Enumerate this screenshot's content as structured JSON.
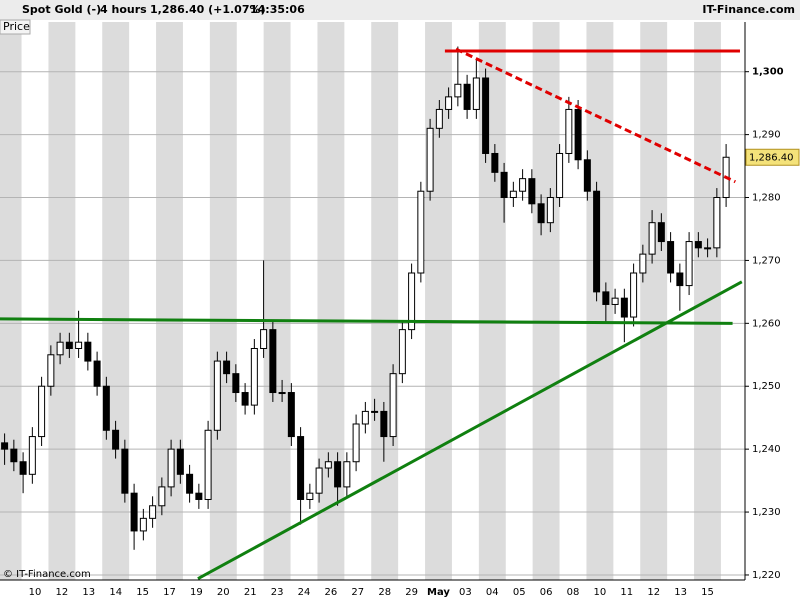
{
  "header": {
    "instrument": "Spot Gold (-)",
    "interval": "4 hours",
    "quote": "1,286.40 (+1.07%)",
    "time": "14:35:06",
    "site": "IT-Finance.com"
  },
  "panel_label": "Price",
  "copyright": "© IT-Finance.com",
  "chart_data": {
    "type": "candlestick",
    "x_labels": [
      "10",
      "12",
      "13",
      "14",
      "15",
      "17",
      "19",
      "20",
      "21",
      "23",
      "24",
      "26",
      "27",
      "28",
      "29",
      "May",
      "03",
      "04",
      "05",
      "06",
      "08",
      "10",
      "11",
      "12",
      "13",
      "15"
    ],
    "candles": [
      [
        1241,
        1242.5,
        1237.5,
        1240
      ],
      [
        1240,
        1241.5,
        1236.5,
        1238
      ],
      [
        1238,
        1239.5,
        1233,
        1236
      ],
      [
        1236,
        1243.5,
        1234.5,
        1242
      ],
      [
        1242,
        1251.5,
        1240.5,
        1250
      ],
      [
        1250,
        1256.5,
        1248.5,
        1255
      ],
      [
        1255,
        1258.5,
        1253.5,
        1257
      ],
      [
        1257,
        1258.5,
        1254.5,
        1256
      ],
      [
        1256,
        1262,
        1254.5,
        1257
      ],
      [
        1257,
        1258.5,
        1252.5,
        1254
      ],
      [
        1254,
        1255.5,
        1248.5,
        1250
      ],
      [
        1250,
        1251.5,
        1241.5,
        1243
      ],
      [
        1243,
        1244.5,
        1238.5,
        1240
      ],
      [
        1240,
        1241.5,
        1231.5,
        1233
      ],
      [
        1233,
        1234.5,
        1224,
        1227
      ],
      [
        1227,
        1230.5,
        1225.5,
        1229
      ],
      [
        1229,
        1232.5,
        1227.5,
        1231
      ],
      [
        1231,
        1235.5,
        1229.5,
        1234
      ],
      [
        1234,
        1241.5,
        1232.5,
        1240
      ],
      [
        1240,
        1241.5,
        1234.5,
        1236
      ],
      [
        1236,
        1237.5,
        1231.5,
        1233
      ],
      [
        1233,
        1234.5,
        1230.5,
        1232
      ],
      [
        1232,
        1244.5,
        1230.5,
        1243
      ],
      [
        1243,
        1255.5,
        1241.5,
        1254
      ],
      [
        1254,
        1255.5,
        1250.5,
        1252
      ],
      [
        1252,
        1253.5,
        1247.5,
        1249
      ],
      [
        1249,
        1250.5,
        1245.5,
        1247
      ],
      [
        1247,
        1257.5,
        1245.5,
        1256
      ],
      [
        1256,
        1270,
        1254.5,
        1259
      ],
      [
        1259,
        1260.5,
        1247.5,
        1249
      ],
      [
        1249,
        1251,
        1247.5,
        1249
      ],
      [
        1249,
        1250.5,
        1240.5,
        1242
      ],
      [
        1242,
        1243.5,
        1228,
        1232
      ],
      [
        1232,
        1234.5,
        1230.5,
        1233
      ],
      [
        1233,
        1238.5,
        1231.5,
        1237
      ],
      [
        1237,
        1239.5,
        1235.5,
        1238
      ],
      [
        1238,
        1239.5,
        1231,
        1234
      ],
      [
        1234,
        1239.5,
        1232.5,
        1238
      ],
      [
        1238,
        1245.5,
        1236.5,
        1244
      ],
      [
        1244,
        1247.5,
        1242.5,
        1246
      ],
      [
        1246,
        1248,
        1244.5,
        1246
      ],
      [
        1246,
        1247.5,
        1238,
        1242
      ],
      [
        1242,
        1253.5,
        1240.5,
        1252
      ],
      [
        1252,
        1260.5,
        1250.5,
        1259
      ],
      [
        1259,
        1269.5,
        1257.5,
        1268
      ],
      [
        1268,
        1282.5,
        1266.5,
        1281
      ],
      [
        1281,
        1292.5,
        1279.5,
        1291
      ],
      [
        1291,
        1295.5,
        1289.5,
        1294
      ],
      [
        1294,
        1297.5,
        1292.5,
        1296
      ],
      [
        1296,
        1304,
        1294.5,
        1298
      ],
      [
        1298,
        1299.5,
        1292.5,
        1294
      ],
      [
        1294,
        1302,
        1292.5,
        1299
      ],
      [
        1299,
        1300.5,
        1285.5,
        1287
      ],
      [
        1287,
        1288.5,
        1282.5,
        1284
      ],
      [
        1284,
        1285.5,
        1276,
        1280
      ],
      [
        1280,
        1282.5,
        1278.5,
        1281
      ],
      [
        1281,
        1284.5,
        1279.5,
        1283
      ],
      [
        1283,
        1284.5,
        1277.5,
        1279
      ],
      [
        1279,
        1280.5,
        1274,
        1276
      ],
      [
        1276,
        1281.5,
        1274.5,
        1280
      ],
      [
        1280,
        1288.5,
        1278.5,
        1287
      ],
      [
        1287,
        1296,
        1285.5,
        1294
      ],
      [
        1294,
        1295.5,
        1284.5,
        1286
      ],
      [
        1286,
        1287.5,
        1279.5,
        1281
      ],
      [
        1281,
        1282.5,
        1263.5,
        1265
      ],
      [
        1265,
        1266.5,
        1260,
        1263
      ],
      [
        1263,
        1265.5,
        1261.5,
        1264
      ],
      [
        1264,
        1265.5,
        1257,
        1261
      ],
      [
        1261,
        1269.5,
        1259.5,
        1268
      ],
      [
        1268,
        1272.5,
        1266.5,
        1271
      ],
      [
        1271,
        1278,
        1269.5,
        1276
      ],
      [
        1276,
        1277.5,
        1271.5,
        1273
      ],
      [
        1273,
        1274.5,
        1266.5,
        1268
      ],
      [
        1268,
        1269.5,
        1262,
        1266
      ],
      [
        1266,
        1274.5,
        1264.5,
        1273
      ],
      [
        1273,
        1274.5,
        1270.5,
        1272
      ],
      [
        1272,
        1273.5,
        1270.5,
        1272
      ],
      [
        1272,
        1281.5,
        1270.5,
        1280
      ],
      [
        1280,
        1288.5,
        1278.5,
        1286.4
      ]
    ],
    "ylim": [
      1219.2,
      1307.9
    ],
    "yticks": [
      {
        "value": 1220,
        "label": "1,220"
      },
      {
        "value": 1230,
        "label": "1,230"
      },
      {
        "value": 1240,
        "label": "1,240"
      },
      {
        "value": 1250,
        "label": "1,250"
      },
      {
        "value": 1260,
        "label": "1,260"
      },
      {
        "value": 1270,
        "label": "1,270"
      },
      {
        "value": 1280,
        "label": "1,280"
      },
      {
        "value": 1290,
        "label": "1,290"
      },
      {
        "value": 1300,
        "label": "1,300"
      }
    ],
    "grid": true,
    "last_price": {
      "value": 1286.4,
      "label": "1,286.40"
    },
    "lines": [
      {
        "color": "#e00000",
        "dashed": false,
        "from": [
          47.6,
          1303.3
        ],
        "to": [
          79.5,
          1303.3
        ]
      },
      {
        "color": "#e00000",
        "dashed": true,
        "from": [
          48.8,
          1303.6
        ],
        "to": [
          79,
          1282.5
        ]
      },
      {
        "color": "#108010",
        "dashed": false,
        "from": [
          -0.5,
          1260.7
        ],
        "to": [
          78.7,
          1260
        ]
      },
      {
        "color": "#108010",
        "dashed": false,
        "from": [
          20.9,
          1219.4
        ],
        "to": [
          79.7,
          1266.6
        ]
      }
    ]
  }
}
